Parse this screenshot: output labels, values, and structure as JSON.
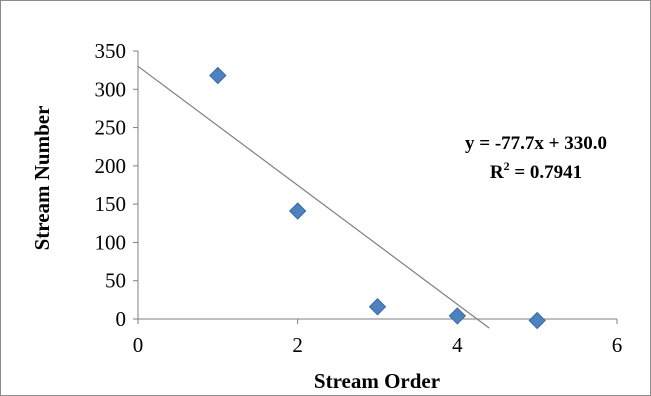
{
  "chart_data": {
    "type": "scatter",
    "x": [
      1,
      2,
      3,
      4,
      5
    ],
    "y": [
      318,
      141,
      16,
      4,
      -2
    ],
    "xlim": [
      0,
      6
    ],
    "ylim": [
      0,
      350
    ],
    "xticks": [
      0,
      2,
      4,
      6
    ],
    "yticks": [
      0,
      50,
      100,
      150,
      200,
      250,
      300,
      350
    ],
    "xlabel": "Stream Order",
    "ylabel": "Stream Number",
    "trendline": {
      "slope": -77.7,
      "intercept": 330.0,
      "x_range": [
        0,
        4.4
      ]
    },
    "annotations": {
      "equation": "y = -77.7x + 330.0",
      "r2_prefix": "R",
      "r2_sup": "2",
      "r2_value": " = 0.7941"
    },
    "grid": false,
    "legend": "none",
    "colors": {
      "marker": "#4f81bd",
      "marker_edge": "#3a6aa5",
      "trendline": "#7f7f7f",
      "axis": "#7f7f7f"
    }
  }
}
